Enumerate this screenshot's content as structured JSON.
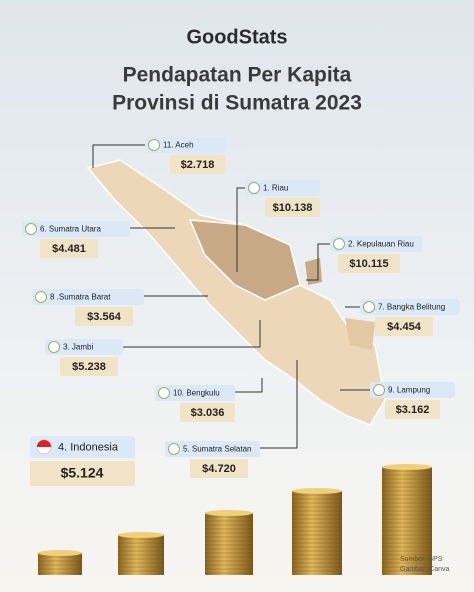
{
  "logo": "GoodStats",
  "title": [
    "Pendapatan Per Kapita",
    "Provinsi di Sumatra 2023"
  ],
  "provinces": [
    {
      "label": "11. Aceh",
      "value": "$2.718"
    },
    {
      "label": "1. Riau",
      "value": "$10.138"
    },
    {
      "label": "2. Kepulauan Riau",
      "value": "$10.115"
    },
    {
      "label": "6. Sumatra Utara",
      "value": "$4.481"
    },
    {
      "label": "8 .Sumatra Barat",
      "value": "$3.564"
    },
    {
      "label": "7. Bangka Belitung",
      "value": "$4.454"
    },
    {
      "label": "3. Jambi",
      "value": "$5.238"
    },
    {
      "label": "10. Bengkulu",
      "value": "$3.036"
    },
    {
      "label": "9. Lampung",
      "value": "$3.162"
    },
    {
      "label": "5. Sumatra Selatan",
      "value": "$4.720"
    }
  ],
  "national": {
    "label": "4. Indonesia",
    "value": "$5.124"
  },
  "source": "Sumber: BPS",
  "image_credit": "Gambar: Canva"
}
